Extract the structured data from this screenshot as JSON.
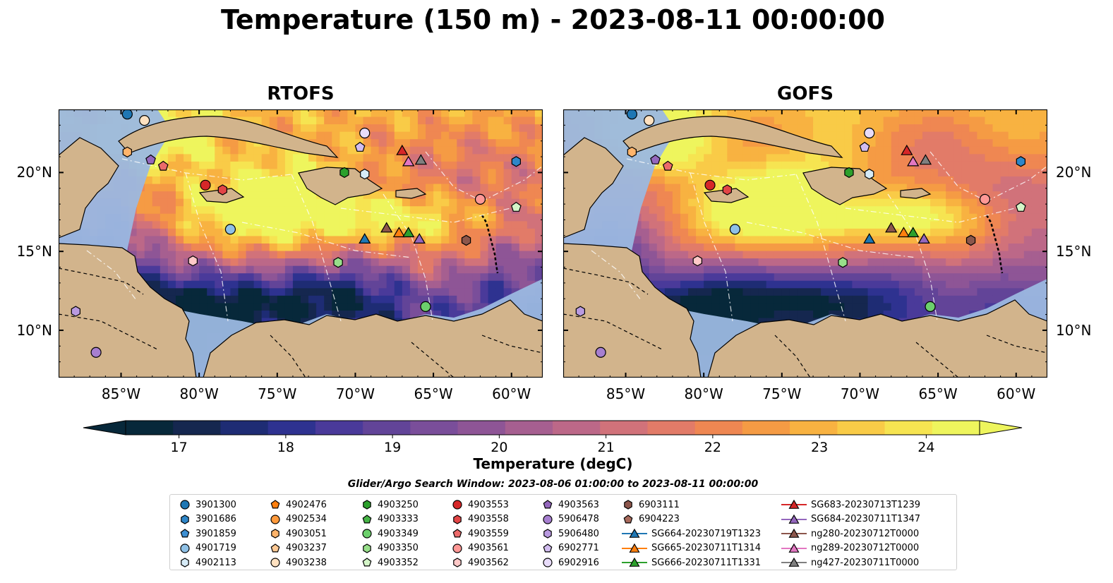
{
  "title": "Temperature (150 m) - 2023-08-11 00:00:00",
  "panels": [
    {
      "title": "RTOFS"
    },
    {
      "title": "GOFS"
    }
  ],
  "map": {
    "lon_ticks": [
      "85°W",
      "80°W",
      "75°W",
      "70°W",
      "65°W",
      "60°W"
    ],
    "lat_ticks": [
      "20°N",
      "15°N",
      "10°N"
    ],
    "lon_values": [
      -85,
      -80,
      -75,
      -70,
      -65,
      -60
    ],
    "lat_values": [
      20,
      15,
      10
    ],
    "extent": {
      "lon": [
        -89,
        -58
      ],
      "lat": [
        7,
        24
      ]
    },
    "colors": {
      "land": "#d2b48c",
      "shallow": "#9bb8e0",
      "coast": "#000000"
    }
  },
  "colorbar": {
    "label": "Temperature (degC)",
    "ticks": [
      "17",
      "18",
      "19",
      "20",
      "21",
      "22",
      "23",
      "24"
    ],
    "tick_values": [
      17,
      18,
      19,
      20,
      21,
      22,
      23,
      24
    ],
    "range": [
      16.5,
      24.5
    ],
    "colors": [
      "#07283a",
      "#15274f",
      "#1e2c74",
      "#2e3290",
      "#4a3a9a",
      "#624498",
      "#7a4e9a",
      "#8e5596",
      "#a65f90",
      "#bc6888",
      "#d1727a",
      "#e27b68",
      "#ef8752",
      "#f59b44",
      "#f8b241",
      "#f9cb47",
      "#f6e451",
      "#eef55d"
    ]
  },
  "search_window": "Glider/Argo Search Window: 2023-08-06 01:00:00 to 2023-08-11 00:00:00",
  "legend": [
    {
      "label": "3901300",
      "marker": "circle",
      "color": "#1f77b4"
    },
    {
      "label": "3901686",
      "marker": "hexagon",
      "color": "#2e86c8"
    },
    {
      "label": "3901859",
      "marker": "pentagon",
      "color": "#3d8fd2"
    },
    {
      "label": "4901719",
      "marker": "circle",
      "color": "#8fc1e6"
    },
    {
      "label": "4902113",
      "marker": "hexagon",
      "color": "#d6ebf7"
    },
    {
      "label": "4902476",
      "marker": "pentagon",
      "color": "#ff7f0e"
    },
    {
      "label": "4902534",
      "marker": "circle",
      "color": "#ff9a3c"
    },
    {
      "label": "4903051",
      "marker": "hexagon",
      "color": "#ffb46b"
    },
    {
      "label": "4903237",
      "marker": "pentagon",
      "color": "#ffc994"
    },
    {
      "label": "4903238",
      "marker": "circle",
      "color": "#ffe1c0"
    },
    {
      "label": "4903250",
      "marker": "hexagon",
      "color": "#2ca02c"
    },
    {
      "label": "4903333",
      "marker": "pentagon",
      "color": "#46b446"
    },
    {
      "label": "4903349",
      "marker": "circle",
      "color": "#6cd06c"
    },
    {
      "label": "4903350",
      "marker": "hexagon",
      "color": "#98df8a"
    },
    {
      "label": "4903352",
      "marker": "pentagon",
      "color": "#d4f5c8"
    },
    {
      "label": "4903553",
      "marker": "circle",
      "color": "#d62728"
    },
    {
      "label": "4903558",
      "marker": "hexagon",
      "color": "#e24546"
    },
    {
      "label": "4903559",
      "marker": "pentagon",
      "color": "#ec6a6a"
    },
    {
      "label": "4903561",
      "marker": "circle",
      "color": "#ff9896"
    },
    {
      "label": "4903562",
      "marker": "hexagon",
      "color": "#ffc9c8"
    },
    {
      "label": "4903563",
      "marker": "pentagon",
      "color": "#9467bd"
    },
    {
      "label": "5906478",
      "marker": "circle",
      "color": "#a77fd0"
    },
    {
      "label": "5906480",
      "marker": "hexagon",
      "color": "#b99ae0"
    },
    {
      "label": "6902771",
      "marker": "pentagon",
      "color": "#d2bdf0"
    },
    {
      "label": "6902916",
      "marker": "circle",
      "color": "#e8dcfa"
    },
    {
      "label": "6903111",
      "marker": "hexagon",
      "color": "#8c564b"
    },
    {
      "label": "6904223",
      "marker": "pentagon",
      "color": "#a86a5c"
    },
    {
      "label": "SG664-20230719T1323",
      "marker": "triangle-line",
      "color": "#1f77b4"
    },
    {
      "label": "SG665-20230711T1314",
      "marker": "triangle-line",
      "color": "#ff7f0e"
    },
    {
      "label": "SG666-20230711T1331",
      "marker": "triangle-line",
      "color": "#2ca02c"
    },
    {
      "label": "SG683-20230713T1239",
      "marker": "triangle-line",
      "color": "#d62728"
    },
    {
      "label": "SG684-20230711T1347",
      "marker": "triangle-line",
      "color": "#9467bd"
    },
    {
      "label": "ng280-20230712T0000",
      "marker": "triangle-line",
      "color": "#8c564b"
    },
    {
      "label": "ng289-20230712T0000",
      "marker": "triangle-line",
      "color": "#e377c2"
    },
    {
      "label": "ng427-20230711T0000",
      "marker": "triangle-line",
      "color": "#7f7f7f"
    }
  ],
  "observations": [
    {
      "id": "3901300",
      "lon": -84.6,
      "lat": 23.7
    },
    {
      "id": "3901686",
      "lon": -59.7,
      "lat": 20.7
    },
    {
      "id": "4901719",
      "lon": -78.0,
      "lat": 16.4
    },
    {
      "id": "4902113",
      "lon": -69.4,
      "lat": 19.9
    },
    {
      "id": "4903051",
      "lon": -84.6,
      "lat": 21.3
    },
    {
      "id": "4903238",
      "lon": -83.5,
      "lat": 23.3
    },
    {
      "id": "4903250",
      "lon": -70.7,
      "lat": 20.0
    },
    {
      "id": "4903349",
      "lon": -65.5,
      "lat": 11.5
    },
    {
      "id": "4903350",
      "lon": -71.1,
      "lat": 14.3
    },
    {
      "id": "4903352",
      "lon": -59.7,
      "lat": 17.8
    },
    {
      "id": "4903553",
      "lon": -79.6,
      "lat": 19.2
    },
    {
      "id": "4903558",
      "lon": -78.5,
      "lat": 18.9
    },
    {
      "id": "4903559",
      "lon": -82.3,
      "lat": 20.4
    },
    {
      "id": "4903561",
      "lon": -62.0,
      "lat": 18.3
    },
    {
      "id": "4903562",
      "lon": -80.4,
      "lat": 14.4
    },
    {
      "id": "4903563",
      "lon": -83.1,
      "lat": 20.8
    },
    {
      "id": "5906478",
      "lon": -86.6,
      "lat": 8.6
    },
    {
      "id": "5906480",
      "lon": -87.9,
      "lat": 11.2
    },
    {
      "id": "6902771",
      "lon": -69.7,
      "lat": 21.6
    },
    {
      "id": "6902916",
      "lon": -69.4,
      "lat": 22.5
    },
    {
      "id": "6903111",
      "lon": -62.9,
      "lat": 15.7
    },
    {
      "id": "SG664-20230719T1323",
      "lon": -69.4,
      "lat": 15.8
    },
    {
      "id": "SG665-20230711T1314",
      "lon": -67.2,
      "lat": 16.2
    },
    {
      "id": "SG666-20230711T1331",
      "lon": -66.6,
      "lat": 16.2
    },
    {
      "id": "SG683-20230713T1239",
      "lon": -67.0,
      "lat": 21.4
    },
    {
      "id": "SG684-20230711T1347",
      "lon": -65.9,
      "lat": 15.8
    },
    {
      "id": "ng280-20230712T0000",
      "lon": -68.0,
      "lat": 16.5
    },
    {
      "id": "ng289-20230712T0000",
      "lon": -66.6,
      "lat": 20.7
    },
    {
      "id": "ng427-20230711T0000",
      "lon": -65.8,
      "lat": 20.8
    }
  ]
}
